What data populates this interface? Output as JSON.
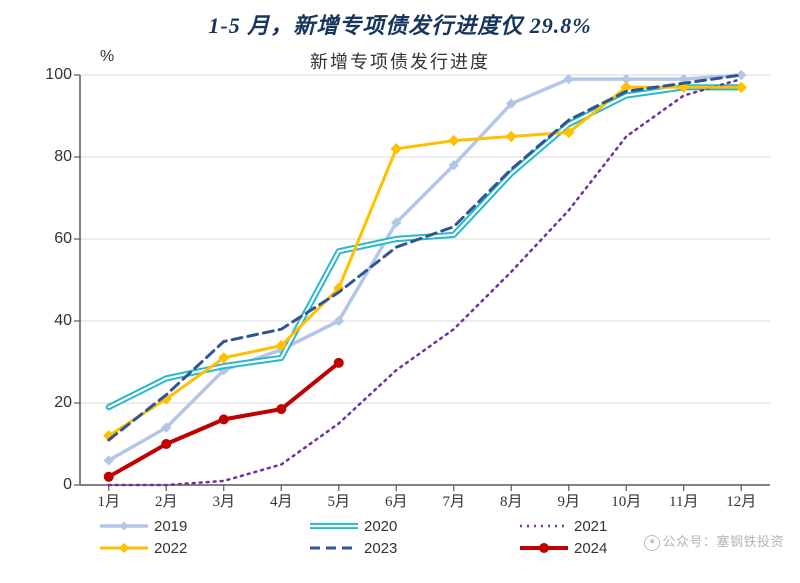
{
  "main_title": "1-5 月，新增专项债发行进度仅 29.8%",
  "sub_title": "新增专项债发行进度",
  "y_unit": "%",
  "chart": {
    "type": "line",
    "background_color": "#ffffff",
    "grid_color": "#d9d9d9",
    "axis_color": "#595959",
    "x_categories": [
      "1月",
      "2月",
      "3月",
      "4月",
      "5月",
      "6月",
      "7月",
      "8月",
      "9月",
      "10月",
      "11月",
      "12月"
    ],
    "ylim": [
      0,
      100
    ],
    "ytick_step": 20,
    "title_fontsize": 22,
    "subtitle_fontsize": 18,
    "label_fontsize": 16,
    "series": [
      {
        "name": "2019",
        "color": "#b4c6e7",
        "line_width": 3.5,
        "dash": "solid",
        "marker": "diamond",
        "marker_size": 9,
        "values": [
          6,
          14,
          28,
          33,
          40,
          64,
          78,
          93,
          99,
          99,
          99,
          100
        ]
      },
      {
        "name": "2020",
        "color": "#27b8cc",
        "line_width": 2.2,
        "dash": "solid",
        "double": true,
        "marker": "none",
        "values": [
          19,
          26,
          29,
          31,
          57,
          60,
          61,
          76,
          88,
          95,
          97,
          97
        ]
      },
      {
        "name": "2021",
        "color": "#7030a0",
        "line_width": 2.5,
        "dash": "dot",
        "marker": "none",
        "values": [
          0,
          0,
          1,
          5,
          15,
          28,
          38,
          52,
          67,
          85,
          95,
          99
        ]
      },
      {
        "name": "2022",
        "color": "#ffc000",
        "line_width": 3,
        "dash": "solid",
        "marker": "diamond",
        "marker_size": 10,
        "values": [
          12,
          21,
          31,
          34,
          48,
          82,
          84,
          85,
          86,
          97,
          97,
          97
        ]
      },
      {
        "name": "2023",
        "color": "#2f5597",
        "line_width": 3,
        "dash": "dash",
        "marker": "none",
        "values": [
          11,
          22,
          35,
          38,
          47,
          58,
          63,
          77,
          89,
          96,
          98,
          100
        ]
      },
      {
        "name": "2024",
        "color": "#c00000",
        "line_width": 4,
        "dash": "solid",
        "marker": "circle",
        "marker_size": 10,
        "values": [
          2,
          10,
          16,
          18.5,
          29.8
        ]
      }
    ]
  },
  "watermark": "公众号：塞钢铁投资"
}
